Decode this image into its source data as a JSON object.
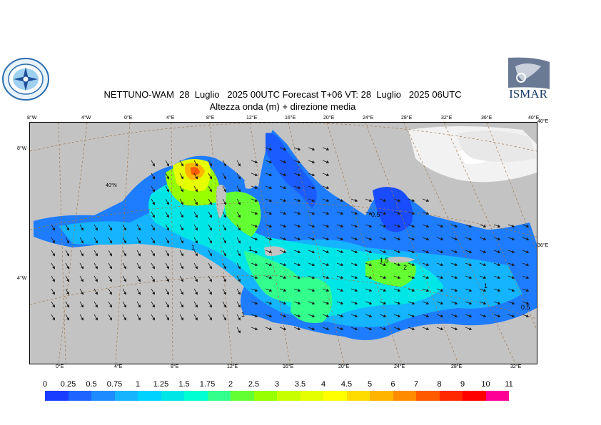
{
  "header": {
    "title_line1": "NETTUNO-WAM  28  Luglio   2025 00UTC Forecast T+06 VT: 28  Luglio   2025 06UTC",
    "title_line2": "Altezza onda (m) + direzione media"
  },
  "logos": {
    "left": "seal-logo",
    "right": "ISMAR"
  },
  "map": {
    "top_lon_ticks": [
      "8°W",
      "4°W",
      "0°E",
      "4°E",
      "8°E",
      "12°E",
      "16°E",
      "20°E",
      "24°E",
      "28°E",
      "32°E",
      "36°E",
      "40°E"
    ],
    "bottom_lon_ticks": [
      "0°E",
      "4°E",
      "8°E",
      "12°E",
      "16°E",
      "20°E",
      "24°E",
      "28°E",
      "32°E"
    ],
    "left_lat_ticks": [
      "8°W",
      "4°W"
    ],
    "right_lat_ticks": [
      "40°E",
      "36°E"
    ],
    "inner_lat_label": "40°N",
    "contour_labels": [
      "0.5",
      "1",
      "1.5",
      "2",
      "1",
      "1",
      "0.5",
      "1"
    ]
  },
  "colorbar": {
    "labels": [
      "0",
      "0.25",
      "0.5",
      "0.75",
      "1",
      "1.25",
      "1.5",
      "1.75",
      "2",
      "2.5",
      "3",
      "3.5",
      "4",
      "4.5",
      "5",
      "6",
      "7",
      "8",
      "9",
      "10",
      "11"
    ],
    "colors": [
      "#1a3cff",
      "#1f64ff",
      "#1e8cff",
      "#14b4ff",
      "#00d2ff",
      "#00e6e6",
      "#00ffd2",
      "#32ff8c",
      "#64ff32",
      "#96ff00",
      "#c8ff00",
      "#e6ff00",
      "#ffff00",
      "#ffdc00",
      "#ffb400",
      "#ff8c00",
      "#ff5a00",
      "#ff2800",
      "#ff0000",
      "#ff0096"
    ]
  }
}
